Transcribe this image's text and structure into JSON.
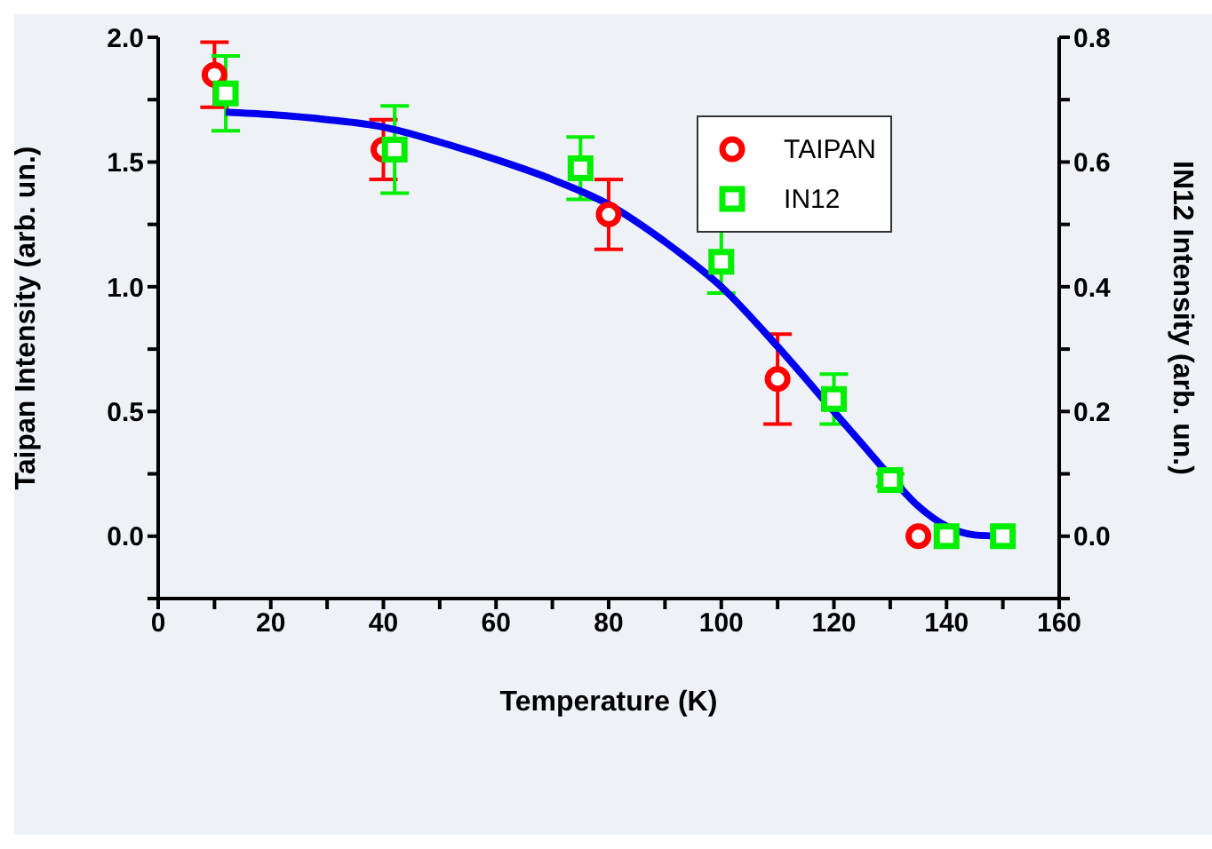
{
  "chart_data": {
    "type": "scatter",
    "xlabel": "Temperature (K)",
    "ylabel": "Taipan Intensity (arb. un.)",
    "y2label": "IN12 Intensity (arb. un.)",
    "xlim": [
      0,
      160
    ],
    "xticks": [
      0,
      {
        "value": 10,
        "label": null
      },
      20,
      {
        "value": 30,
        "label": null
      },
      40,
      {
        "value": 50,
        "label": null
      },
      60,
      {
        "value": 70,
        "label": null
      },
      80,
      {
        "value": 90,
        "label": null
      },
      100,
      {
        "value": 110,
        "label": null
      },
      120,
      {
        "value": 130,
        "label": null
      },
      140,
      {
        "value": 150,
        "label": null
      },
      160
    ],
    "ylim": [
      -0.25,
      2.0
    ],
    "yticks": [
      {
        "value": -0.25,
        "label": null
      },
      {
        "value": 0,
        "label": "0.0"
      },
      {
        "value": 0.25,
        "label": null
      },
      0.5,
      {
        "value": 0.75,
        "label": null
      },
      {
        "value": 1,
        "label": "1.0"
      },
      {
        "value": 1.25,
        "label": null
      },
      1.5,
      {
        "value": 1.75,
        "label": null
      },
      {
        "value": 2,
        "label": "2.0"
      }
    ],
    "y2lim": [
      -0.1,
      0.8
    ],
    "y2ticks": [
      {
        "value": -0.1,
        "label": null
      },
      {
        "value": 0,
        "label": "0.0"
      },
      {
        "value": 0.1,
        "label": null
      },
      0.2,
      {
        "value": 0.3,
        "label": null
      },
      0.4,
      {
        "value": 0.5,
        "label": null
      },
      0.6,
      {
        "value": 0.7,
        "label": null
      },
      0.8
    ],
    "legend": "top right",
    "grid": false,
    "series": [
      {
        "name": "TAIPAN",
        "marker": "circle",
        "color": "#ff0000",
        "x": [
          10,
          40,
          80,
          110,
          135
        ],
        "values": [
          1.85,
          1.55,
          1.29,
          0.63,
          0.0
        ],
        "errors": [
          0.13,
          0.12,
          0.14,
          0.18,
          null
        ]
      },
      {
        "name": "IN12",
        "marker": "square",
        "axis": "y2",
        "color": "#00ee00",
        "x": [
          12,
          42,
          75,
          100,
          120,
          130,
          140,
          150
        ],
        "values": [
          0.71,
          0.62,
          0.59,
          0.44,
          0.22,
          0.09,
          0.0,
          0.0
        ],
        "errors": [
          0.06,
          0.07,
          0.05,
          0.05,
          0.04,
          0.01,
          null,
          null
        ]
      },
      {
        "type": "line",
        "marker": "none",
        "line_style": "solid",
        "color": "#0000ee",
        "x": [
          12,
          20,
          30,
          40,
          50,
          60,
          70,
          80,
          90,
          100,
          110,
          120,
          125,
          130,
          135,
          140,
          145,
          150
        ],
        "values": [
          1.7,
          1.69,
          1.67,
          1.64,
          1.58,
          1.51,
          1.43,
          1.33,
          1.18,
          1.0,
          0.76,
          0.5,
          0.37,
          0.24,
          0.12,
          0.04,
          0.005,
          0.0
        ]
      }
    ]
  }
}
